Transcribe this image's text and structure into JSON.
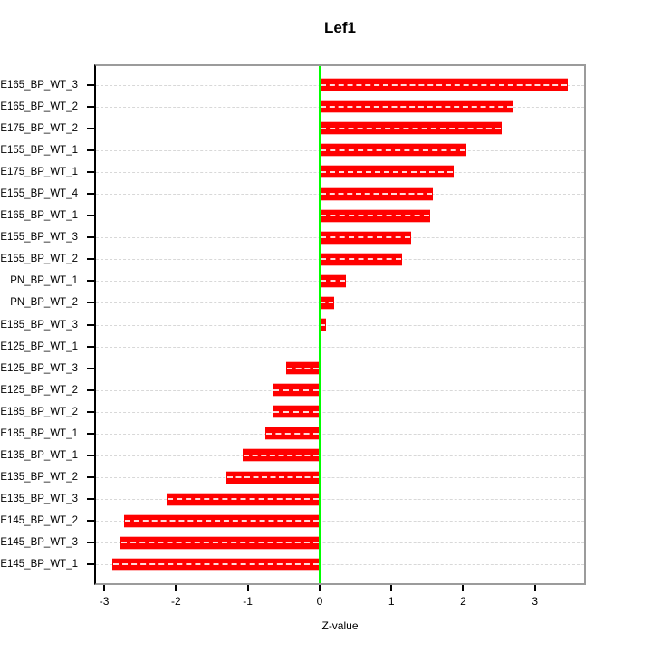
{
  "title": "Lef1",
  "x_axis_title": "Z-value",
  "colors": {
    "bar": "#ff0000",
    "zero_line": "#00ff00",
    "gridline": "#d8d8d8",
    "box_border": "#9b9b9b",
    "axis": "#000000",
    "background": "#ffffff"
  },
  "chart_data": {
    "type": "bar",
    "orientation": "horizontal",
    "title": "Lef1",
    "xlabel": "Z-value",
    "ylabel": "",
    "grid": true,
    "legend": "none",
    "zero_line": true,
    "xlim": [
      -3.14,
      3.71
    ],
    "x_ticks": [
      -3,
      -2,
      -1,
      0,
      1,
      2,
      3
    ],
    "categories": [
      "E165_BP_WT_3",
      "E165_BP_WT_2",
      "E175_BP_WT_2",
      "E155_BP_WT_1",
      "E175_BP_WT_1",
      "E155_BP_WT_4",
      "E165_BP_WT_1",
      "E155_BP_WT_3",
      "E155_BP_WT_2",
      "PN_BP_WT_1",
      "PN_BP_WT_2",
      "E185_BP_WT_3",
      "E125_BP_WT_1",
      "E125_BP_WT_3",
      "E125_BP_WT_2",
      "E185_BP_WT_2",
      "E185_BP_WT_1",
      "E135_BP_WT_1",
      "E135_BP_WT_2",
      "E135_BP_WT_3",
      "E145_BP_WT_2",
      "E145_BP_WT_3",
      "E145_BP_WT_1"
    ],
    "values": [
      3.46,
      2.7,
      2.54,
      2.05,
      1.87,
      1.58,
      1.54,
      1.27,
      1.15,
      0.37,
      0.2,
      0.09,
      0.01,
      -0.47,
      -0.65,
      -0.65,
      -0.75,
      -1.07,
      -1.3,
      -2.13,
      -2.73,
      -2.78,
      -2.89
    ]
  }
}
